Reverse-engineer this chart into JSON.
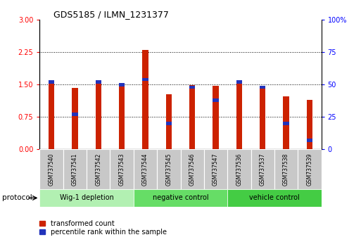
{
  "title": "GDS5185 / ILMN_1231377",
  "samples": [
    "GSM737540",
    "GSM737541",
    "GSM737542",
    "GSM737543",
    "GSM737544",
    "GSM737545",
    "GSM737546",
    "GSM737547",
    "GSM737536",
    "GSM737537",
    "GSM737538",
    "GSM737539"
  ],
  "red_values": [
    1.52,
    1.43,
    1.55,
    1.52,
    2.3,
    1.27,
    1.49,
    1.47,
    1.57,
    1.47,
    1.23,
    1.15
  ],
  "blue_pct": [
    52,
    27,
    52,
    50,
    54,
    20,
    48,
    38,
    52,
    48,
    20,
    7
  ],
  "groups": [
    {
      "label": "Wig-1 depletion",
      "start": 0,
      "end": 3,
      "color": "#b2f0b2"
    },
    {
      "label": "negative control",
      "start": 4,
      "end": 7,
      "color": "#66dd66"
    },
    {
      "label": "vehicle control",
      "start": 8,
      "end": 11,
      "color": "#44cc44"
    }
  ],
  "ylim_left": [
    0,
    3
  ],
  "ylim_right": [
    0,
    100
  ],
  "yticks_left": [
    0,
    0.75,
    1.5,
    2.25,
    3
  ],
  "yticks_right": [
    0,
    25,
    50,
    75,
    100
  ],
  "bar_color_red": "#cc2200",
  "bar_color_blue": "#2233bb",
  "bar_width": 0.25,
  "blue_bar_height": 0.08,
  "legend_red": "transformed count",
  "legend_blue": "percentile rank within the sample",
  "protocol_label": "protocol"
}
